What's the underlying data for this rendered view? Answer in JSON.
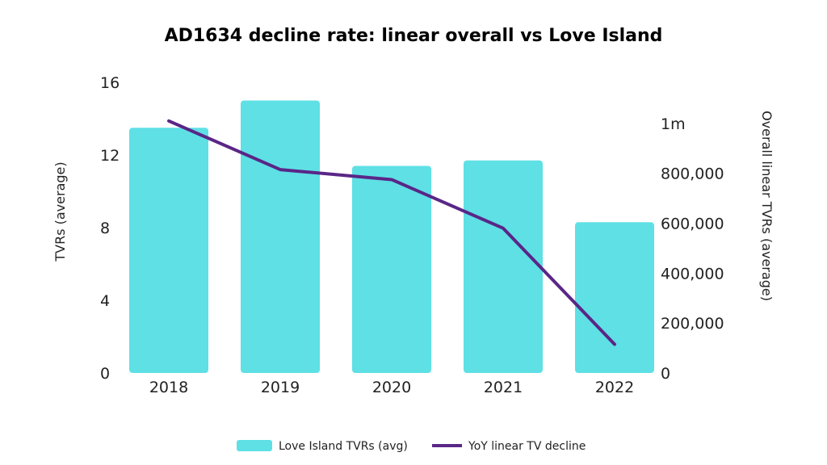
{
  "chart_data": {
    "type": "bar",
    "title": "AD1634 decline rate: linear overall vs Love Island",
    "categories": [
      "2018",
      "2019",
      "2020",
      "2021",
      "2022"
    ],
    "ylabel": "TVRs (average)",
    "y2label": "Overall linear TVRs (average)",
    "ylim": [
      0,
      16
    ],
    "yticks": [
      "0",
      "4",
      "8",
      "12",
      "16"
    ],
    "y2lim": [
      0,
      1100000
    ],
    "y2ticks": [
      {
        "value": 0,
        "label": "0"
      },
      {
        "value": 200000,
        "label": "200,000"
      },
      {
        "value": 400000,
        "label": "400,000"
      },
      {
        "value": 600000,
        "label": "600,000"
      },
      {
        "value": 800000,
        "label": "800,000"
      },
      {
        "value": 1000000,
        "label": "1m"
      }
    ],
    "series": [
      {
        "name": "Love Island TVRs (avg)",
        "type": "bar",
        "axis": "left",
        "color": "#5ee0e5",
        "values": [
          13.5,
          15.0,
          11.4,
          11.7,
          8.3
        ]
      },
      {
        "name": "YoY linear TV decline",
        "type": "line",
        "axis": "right",
        "color": "#5a2687",
        "values": [
          1010000,
          815000,
          775000,
          580000,
          115000
        ]
      }
    ],
    "grid": false,
    "legend": "bottom"
  }
}
